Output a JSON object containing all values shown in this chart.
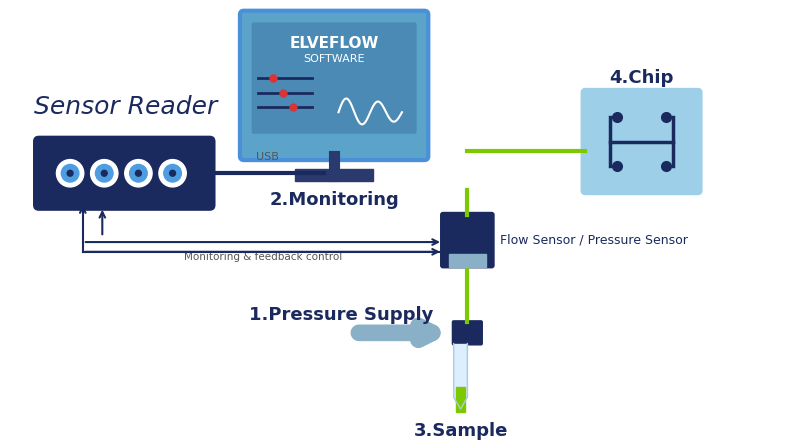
{
  "bg_color": "#ffffff",
  "dark_blue": "#1a2a5e",
  "medium_blue": "#2e4a8c",
  "light_blue": "#a8d4e6",
  "sky_blue": "#5ba3c9",
  "green_line": "#7dc900",
  "bright_blue": "#4d9de0",
  "gray_blue": "#7a9fbf",
  "sensor_reader_label": "Sensor Reader",
  "monitoring_label": "2.Monitoring",
  "chip_label": "4.Chip",
  "pressure_label": "1.Pressure Supply",
  "sample_label": "3.Sample",
  "usb_label": "USB",
  "feedback_label": "Monitoring & feedback control",
  "flow_sensor_label": "Flow Sensor / Pressure Sensor",
  "elveflow_line1": "ELVEFLOW",
  "elveflow_line2": "SOFTWARE"
}
